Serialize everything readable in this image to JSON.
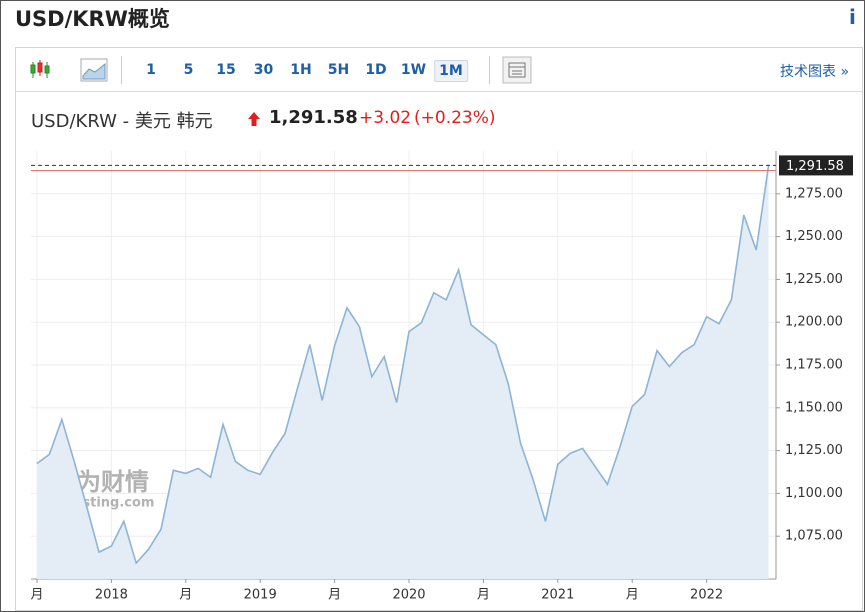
{
  "header": {
    "title": "USD/KRW概览",
    "info": "i"
  },
  "toolbar": {
    "intervals": [
      "1",
      "5",
      "15",
      "30",
      "1H",
      "5H",
      "1D",
      "1W",
      "1M"
    ],
    "selected_index": 8,
    "link": "技术图表 »"
  },
  "quote": {
    "name": "USD/KRW - 美元 韩元",
    "price": "1,291.58",
    "change": "+3.02",
    "change_pct": "(+0.23%)"
  },
  "chart_data": {
    "type": "area",
    "color": "#8db4d6",
    "fill": "#e4edf6",
    "watermark": "英为财情",
    "watermark_sub": "Investing.com",
    "categories": [
      "月",
      null,
      null,
      null,
      null,
      null,
      "2018",
      null,
      null,
      null,
      null,
      null,
      "月",
      null,
      null,
      null,
      null,
      null,
      "2019",
      null,
      null,
      null,
      null,
      null,
      "月",
      null,
      null,
      null,
      null,
      null,
      "2020",
      null,
      null,
      null,
      null,
      null,
      "月",
      null,
      null,
      null,
      null,
      null,
      "2021",
      null,
      null,
      null,
      null,
      null,
      "月",
      null,
      null,
      null,
      null,
      null,
      "2022",
      null,
      null,
      null,
      null,
      null
    ],
    "values": [
      1117.5,
      1122.8,
      1143.2,
      1118.7,
      1092.5,
      1065.7,
      1069.2,
      1083.7,
      1059.3,
      1067.4,
      1079.1,
      1113.5,
      1111.7,
      1114.6,
      1109.4,
      1140.3,
      1118.7,
      1113.5,
      1111.1,
      1124.0,
      1135.0,
      1161.2,
      1186.9,
      1154.3,
      1186.3,
      1208.4,
      1197.4,
      1168.2,
      1179.9,
      1153.1,
      1194.5,
      1199.7,
      1217.2,
      1213.1,
      1230.6,
      1198.5,
      1192.7,
      1186.9,
      1164.2,
      1129.2,
      1108.2,
      1083.7,
      1117.0,
      1123.4,
      1126.3,
      1115.8,
      1105.3,
      1126.9,
      1150.8,
      1157.8,
      1183.4,
      1174.1,
      1182.2,
      1186.9,
      1203.2,
      1199.1,
      1213.1,
      1262.6,
      1242.2,
      1291.58
    ],
    "reference_line": 1288.56,
    "reference_color": "#e06666",
    "ylim": [
      1050,
      1300
    ],
    "yticks": [
      {
        "value": 1075,
        "label": "1,075.00"
      },
      {
        "value": 1100,
        "label": "1,100.00"
      },
      {
        "value": 1125,
        "label": "1,125.00"
      },
      {
        "value": 1150,
        "label": "1,150.00"
      },
      {
        "value": 1175,
        "label": "1,175.00"
      },
      {
        "value": 1200,
        "label": "1,200.00"
      },
      {
        "value": 1225,
        "label": "1,225.00"
      },
      {
        "value": 1250,
        "label": "1,250.00"
      },
      {
        "value": 1275,
        "label": "1,275.00"
      }
    ],
    "grid": true
  }
}
